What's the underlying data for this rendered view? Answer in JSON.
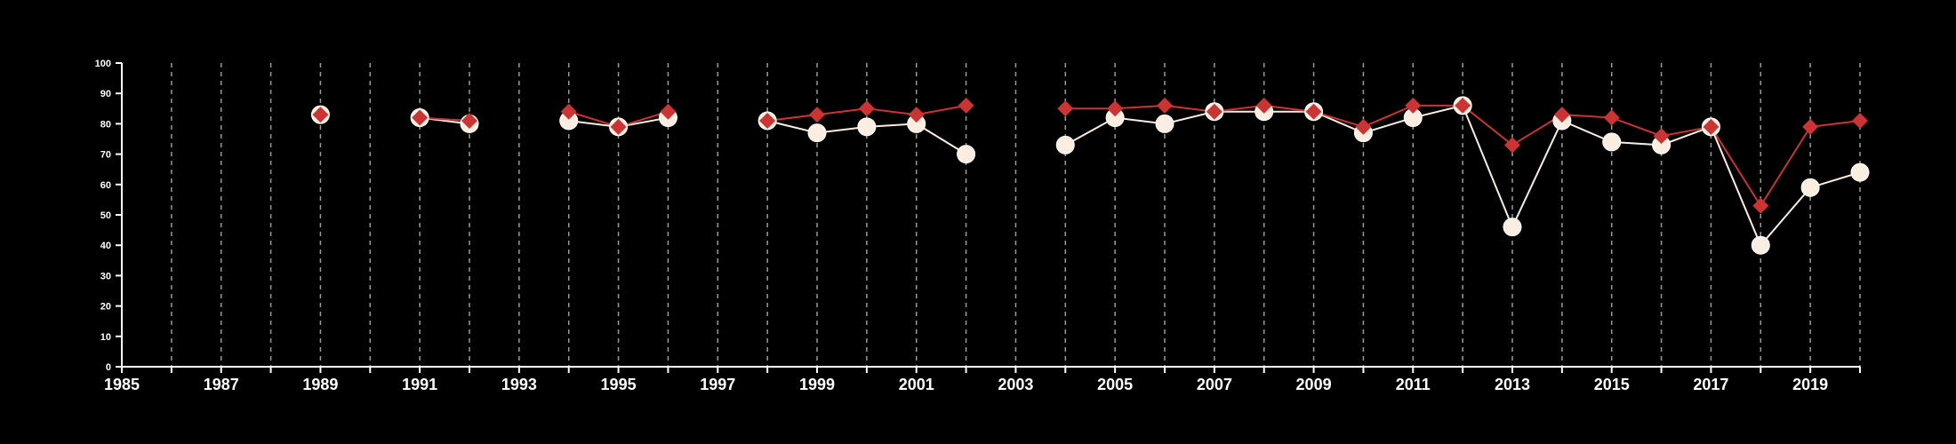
{
  "chart_data": {
    "type": "line",
    "title": "",
    "xlabel": "",
    "ylabel": "",
    "xlim": [
      1985,
      2020
    ],
    "ylim": [
      0,
      100
    ],
    "x_ticks": [
      "1985",
      "1987",
      "1989",
      "1991",
      "1993",
      "1995",
      "1997",
      "1999",
      "2001",
      "2003",
      "2005",
      "2007",
      "2009",
      "2011",
      "2013",
      "2015",
      "2017",
      "2019"
    ],
    "y_ticks": [
      "0",
      "10",
      "20",
      "30",
      "40",
      "50",
      "60",
      "70",
      "80",
      "90",
      "100"
    ],
    "grid": "vertical-dashed-every-year",
    "legend": "none",
    "colors": {
      "background": "#000000",
      "axis": "#ffffff",
      "grid": "#9a9a9a",
      "series_a": "#fbeee0",
      "series_b": "#cc3333"
    },
    "series": [
      {
        "marker": "circle",
        "color": "#fbeee0",
        "x": [
          1989,
          1991,
          1992,
          1994,
          1995,
          1996,
          1998,
          1999,
          2000,
          2001,
          2002,
          2004,
          2005,
          2006,
          2007,
          2008,
          2009,
          2010,
          2011,
          2012,
          2013,
          2014,
          2015,
          2016,
          2017,
          2018,
          2019,
          2020
        ],
        "y": [
          83,
          82,
          80,
          81,
          79,
          82,
          81,
          77,
          79,
          80,
          70,
          73,
          82,
          80,
          84,
          84,
          84,
          77,
          82,
          86,
          46,
          81,
          74,
          73,
          79,
          40,
          59,
          64
        ]
      },
      {
        "marker": "diamond",
        "color": "#cc3333",
        "x": [
          1989,
          1991,
          1992,
          1994,
          1995,
          1996,
          1998,
          1999,
          2000,
          2001,
          2002,
          2004,
          2005,
          2006,
          2007,
          2008,
          2009,
          2010,
          2011,
          2012,
          2013,
          2014,
          2015,
          2016,
          2017,
          2018,
          2019,
          2020
        ],
        "y": [
          83,
          82,
          81,
          84,
          79,
          84,
          81,
          83,
          85,
          83,
          86,
          85,
          85,
          86,
          84,
          86,
          84,
          79,
          86,
          86,
          73,
          83,
          82,
          76,
          79,
          53,
          79,
          81
        ]
      }
    ]
  }
}
